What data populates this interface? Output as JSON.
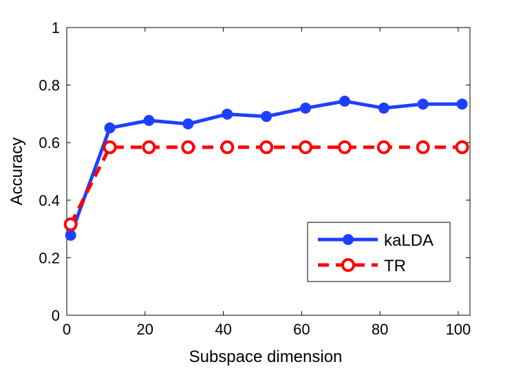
{
  "chart_data": {
    "type": "line",
    "title": "",
    "xlabel": "Subspace dimension",
    "ylabel": "Accuracy",
    "xlim": [
      0,
      103
    ],
    "ylim": [
      0,
      1
    ],
    "xticks": [
      0,
      20,
      40,
      60,
      80,
      100
    ],
    "xtick_labels": [
      "0",
      "20",
      "40",
      "60",
      "80",
      "100"
    ],
    "yticks": [
      0,
      0.2,
      0.4,
      0.6,
      0.8,
      1
    ],
    "ytick_labels": [
      "0",
      "0.2",
      "0.4",
      "0.6",
      "0.8",
      "1"
    ],
    "grid": false,
    "legend_position": "bottom-right",
    "x": [
      1,
      11,
      21,
      31,
      41,
      51,
      61,
      71,
      81,
      91,
      101
    ],
    "series": [
      {
        "name": "kaLDA",
        "color": "#1f3fff",
        "style": "solid",
        "marker": "filled-circle",
        "values": [
          0.278,
          0.651,
          0.677,
          0.665,
          0.699,
          0.691,
          0.72,
          0.744,
          0.72,
          0.734,
          0.734
        ]
      },
      {
        "name": "TR",
        "color": "#ff0000",
        "style": "dashed",
        "marker": "open-circle",
        "values": [
          0.316,
          0.584,
          0.584,
          0.584,
          0.584,
          0.584,
          0.584,
          0.584,
          0.584,
          0.584,
          0.584
        ]
      }
    ]
  }
}
